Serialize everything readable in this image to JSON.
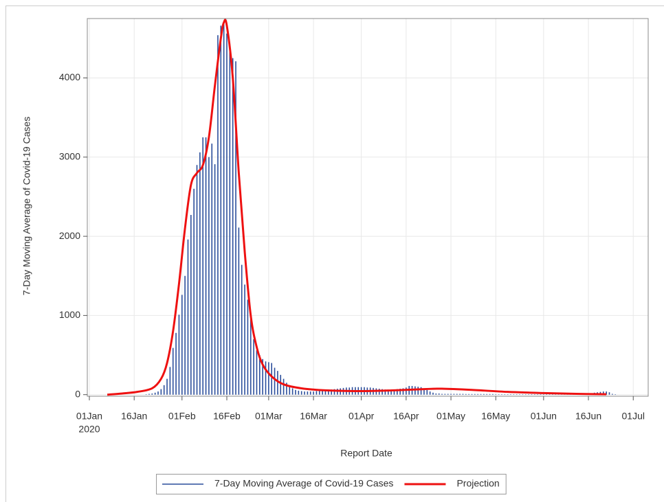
{
  "chart_data": {
    "type": "bar",
    "x_label": "Report Date",
    "y_label": "7-Day Moving Average of Covid-19 Cases",
    "x_year_label": "2020",
    "xlim": [
      "2020-01-01",
      "2020-07-06"
    ],
    "xticks": [
      {
        "value": "2020-01-01",
        "label": "01Jan"
      },
      {
        "value": "2020-01-16",
        "label": "16Jan"
      },
      {
        "value": "2020-02-01",
        "label": "01Feb"
      },
      {
        "value": "2020-02-16",
        "label": "16Feb"
      },
      {
        "value": "2020-03-01",
        "label": "01Mar"
      },
      {
        "value": "2020-03-16",
        "label": "16Mar"
      },
      {
        "value": "2020-04-01",
        "label": "01Apr"
      },
      {
        "value": "2020-04-16",
        "label": "16Apr"
      },
      {
        "value": "2020-05-01",
        "label": "01May"
      },
      {
        "value": "2020-05-16",
        "label": "16May"
      },
      {
        "value": "2020-06-01",
        "label": "01Jun"
      },
      {
        "value": "2020-06-16",
        "label": "16Jun"
      },
      {
        "value": "2020-07-01",
        "label": "01Jul"
      }
    ],
    "ylim": [
      -20,
      4750
    ],
    "yticks": [
      0,
      1000,
      2000,
      3000,
      4000
    ],
    "grid": true,
    "legend": "bottom",
    "series": [
      {
        "name": "7-Day Moving Average of Covid-19 Cases",
        "type": "needle",
        "color": "#2a4d9b",
        "x": [
          "2020-01-20",
          "2020-01-21",
          "2020-01-22",
          "2020-01-23",
          "2020-01-24",
          "2020-01-25",
          "2020-01-26",
          "2020-01-27",
          "2020-01-28",
          "2020-01-29",
          "2020-01-30",
          "2020-01-31",
          "2020-02-01",
          "2020-02-02",
          "2020-02-03",
          "2020-02-04",
          "2020-02-05",
          "2020-02-06",
          "2020-02-07",
          "2020-02-08",
          "2020-02-09",
          "2020-02-10",
          "2020-02-11",
          "2020-02-12",
          "2020-02-13",
          "2020-02-14",
          "2020-02-15",
          "2020-02-16",
          "2020-02-17",
          "2020-02-18",
          "2020-02-19",
          "2020-02-20",
          "2020-02-21",
          "2020-02-22",
          "2020-02-23",
          "2020-02-24",
          "2020-02-25",
          "2020-02-26",
          "2020-02-27",
          "2020-02-28",
          "2020-02-29",
          "2020-03-01",
          "2020-03-02",
          "2020-03-03",
          "2020-03-04",
          "2020-03-05",
          "2020-03-06",
          "2020-03-07",
          "2020-03-08",
          "2020-03-09",
          "2020-03-10",
          "2020-03-11",
          "2020-03-12",
          "2020-03-13",
          "2020-03-14",
          "2020-03-15",
          "2020-03-16",
          "2020-03-17",
          "2020-03-18",
          "2020-03-19",
          "2020-03-20",
          "2020-03-21",
          "2020-03-22",
          "2020-03-23",
          "2020-03-24",
          "2020-03-25",
          "2020-03-26",
          "2020-03-27",
          "2020-03-28",
          "2020-03-29",
          "2020-03-30",
          "2020-03-31",
          "2020-04-01",
          "2020-04-02",
          "2020-04-03",
          "2020-04-04",
          "2020-04-05",
          "2020-04-06",
          "2020-04-07",
          "2020-04-08",
          "2020-04-09",
          "2020-04-10",
          "2020-04-11",
          "2020-04-12",
          "2020-04-13",
          "2020-04-14",
          "2020-04-15",
          "2020-04-16",
          "2020-04-17",
          "2020-04-18",
          "2020-04-19",
          "2020-04-20",
          "2020-04-21",
          "2020-04-22",
          "2020-04-23",
          "2020-04-24",
          "2020-04-25",
          "2020-04-26",
          "2020-04-27",
          "2020-04-28",
          "2020-04-29",
          "2020-04-30",
          "2020-05-01",
          "2020-05-02",
          "2020-05-03",
          "2020-05-04",
          "2020-05-05",
          "2020-05-06",
          "2020-05-07",
          "2020-05-08",
          "2020-05-09",
          "2020-05-10",
          "2020-05-11",
          "2020-05-12",
          "2020-05-13",
          "2020-05-14",
          "2020-05-15",
          "2020-05-16",
          "2020-05-17",
          "2020-05-18",
          "2020-05-19",
          "2020-05-20",
          "2020-05-21",
          "2020-05-22",
          "2020-05-23",
          "2020-05-24",
          "2020-05-25",
          "2020-05-26",
          "2020-05-27",
          "2020-05-28",
          "2020-05-29",
          "2020-05-30",
          "2020-05-31",
          "2020-06-01",
          "2020-06-02",
          "2020-06-03",
          "2020-06-04",
          "2020-06-05",
          "2020-06-06",
          "2020-06-07",
          "2020-06-08",
          "2020-06-09",
          "2020-06-10",
          "2020-06-11",
          "2020-06-12",
          "2020-06-13",
          "2020-06-14",
          "2020-06-15",
          "2020-06-16",
          "2020-06-17",
          "2020-06-18",
          "2020-06-19",
          "2020-06-20",
          "2020-06-21",
          "2020-06-22",
          "2020-06-23",
          "2020-06-24",
          "2020-06-25"
        ],
        "values": [
          5,
          10,
          15,
          25,
          40,
          70,
          120,
          200,
          350,
          590,
          780,
          1010,
          1260,
          1500,
          1960,
          2270,
          2600,
          2900,
          3060,
          3250,
          3250,
          3000,
          3170,
          2910,
          4540,
          4660,
          4700,
          4560,
          4400,
          4250,
          4210,
          2110,
          1640,
          1390,
          1200,
          950,
          700,
          560,
          500,
          450,
          420,
          410,
          400,
          340,
          300,
          250,
          200,
          150,
          110,
          80,
          60,
          50,
          45,
          40,
          40,
          40,
          40,
          45,
          50,
          55,
          60,
          60,
          65,
          70,
          75,
          80,
          85,
          90,
          90,
          95,
          95,
          95,
          95,
          95,
          90,
          90,
          85,
          80,
          75,
          70,
          65,
          60,
          60,
          65,
          70,
          75,
          80,
          90,
          110,
          110,
          105,
          100,
          95,
          80,
          60,
          40,
          25,
          15,
          15,
          10,
          10,
          10,
          10,
          10,
          10,
          10,
          10,
          8,
          8,
          8,
          8,
          8,
          8,
          8,
          8,
          8,
          8,
          5,
          5,
          5,
          5,
          5,
          5,
          5,
          5,
          5,
          5,
          5,
          5,
          5,
          5,
          5,
          5,
          5,
          5,
          5,
          5,
          5,
          5,
          5,
          5,
          5,
          5,
          5,
          5,
          5,
          5,
          5,
          5,
          15,
          25,
          30,
          35,
          40,
          40,
          30,
          10,
          5
        ]
      },
      {
        "name": "Projection",
        "type": "line",
        "color": "#ee1111",
        "x": [
          "2020-01-07",
          "2020-01-12",
          "2020-01-17",
          "2020-01-22",
          "2020-01-25",
          "2020-01-27",
          "2020-01-29",
          "2020-01-31",
          "2020-02-02",
          "2020-02-04",
          "2020-02-06",
          "2020-02-08",
          "2020-02-10",
          "2020-02-12",
          "2020-02-14",
          "2020-02-15",
          "2020-02-16",
          "2020-02-18",
          "2020-02-20",
          "2020-02-22",
          "2020-02-24",
          "2020-02-26",
          "2020-02-28",
          "2020-03-02",
          "2020-03-06",
          "2020-03-12",
          "2020-03-20",
          "2020-04-01",
          "2020-04-12",
          "2020-04-22",
          "2020-04-28",
          "2020-05-08",
          "2020-05-20",
          "2020-06-01",
          "2020-06-12",
          "2020-06-22"
        ],
        "values": [
          0,
          15,
          35,
          80,
          200,
          400,
          800,
          1400,
          2100,
          2650,
          2800,
          2900,
          3250,
          3900,
          4500,
          4700,
          4660,
          4000,
          2800,
          1800,
          1000,
          600,
          380,
          230,
          130,
          80,
          55,
          45,
          55,
          70,
          75,
          60,
          35,
          20,
          10,
          5
        ]
      }
    ]
  }
}
